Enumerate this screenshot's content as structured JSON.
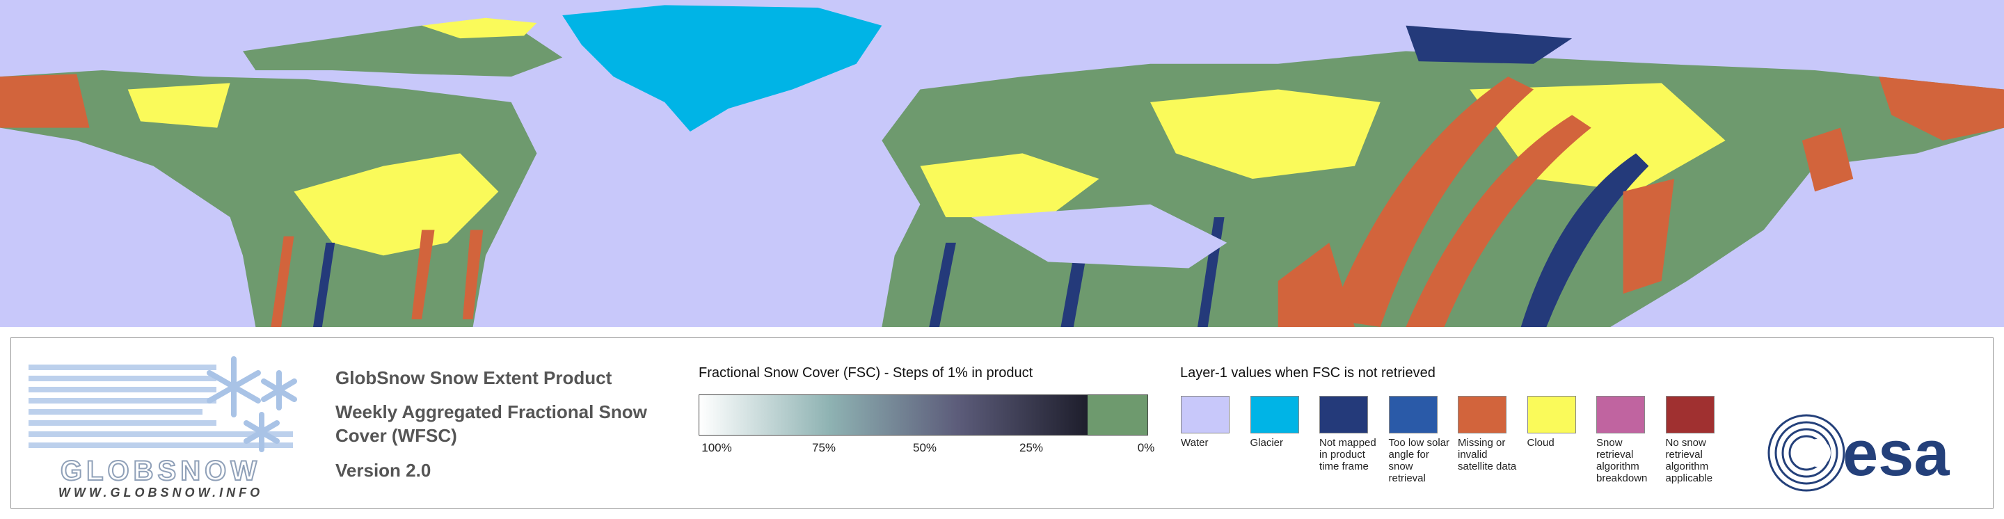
{
  "logo": {
    "name": "GLOBSNOW",
    "url": "WWW.GLOBSNOW.INFO"
  },
  "header": {
    "product": "GlobSnow Snow Extent Product",
    "title_lines": [
      "Weekly Aggregated Fractional Snow",
      "Cover (WFSC)"
    ],
    "version": "Version 2.0"
  },
  "fsc_scale": {
    "title": "Fractional Snow Cover (FSC) - Steps of 1% in product",
    "ticks": [
      "100%",
      "75%",
      "50%",
      "25%",
      "0%"
    ],
    "gradient": [
      "#ffffff",
      "#8fb3b3",
      "#5c5c7a",
      "#1e1e2c"
    ],
    "no_snow_color": "#6e9a6e"
  },
  "layer1": {
    "title": "Layer-1 values when FSC is not retrieved",
    "items": [
      {
        "label": "Water",
        "color": "#c8c8fa"
      },
      {
        "label": "Glacier",
        "color": "#00b4e6"
      },
      {
        "label": "Not mapped in product time frame",
        "color": "#243a7a"
      },
      {
        "label": "Too low solar angle for snow retrieval",
        "color": "#2a5aa8"
      },
      {
        "label": "Missing or invalid satellite data",
        "color": "#d2643c"
      },
      {
        "label": "Cloud",
        "color": "#fafa5a"
      },
      {
        "label": "Snow retrieval algorithm breakdown",
        "color": "#c064a0"
      },
      {
        "label": "No snow retrieval algorithm applicable",
        "color": "#a03030"
      }
    ]
  },
  "agency": "esa"
}
